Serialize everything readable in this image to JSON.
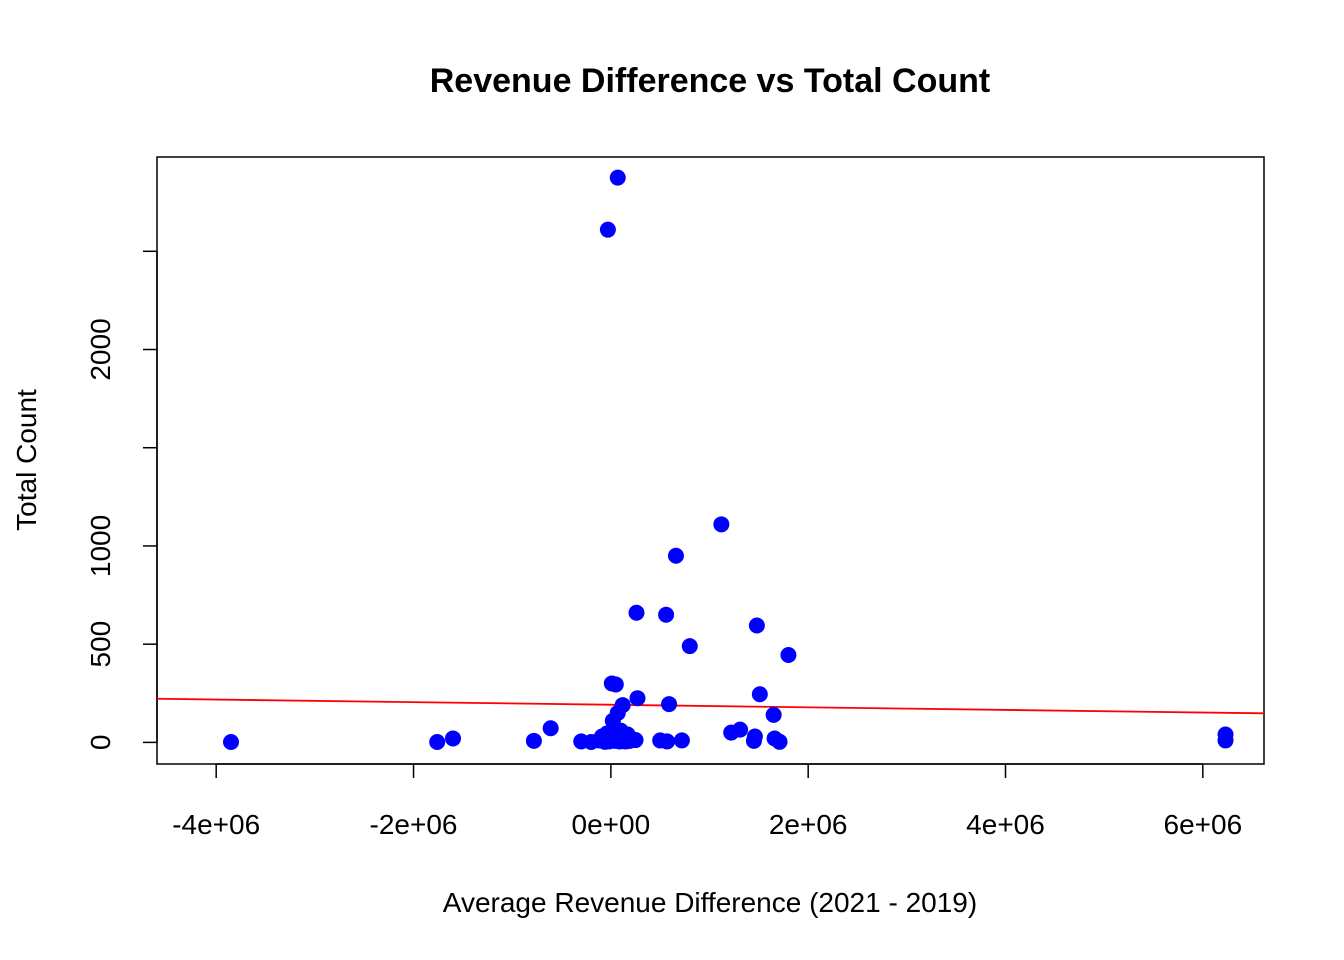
{
  "chart_data": {
    "type": "scatter",
    "title": "Revenue Difference vs Total Count",
    "xlabel": "Average Revenue Difference (2021 - 2019)",
    "ylabel": "Total Count",
    "xlim": [
      -4600000,
      6620000
    ],
    "ylim": [
      -110,
      2980
    ],
    "x_ticks": [
      -4000000,
      -2000000,
      0,
      2000000,
      4000000,
      6000000
    ],
    "x_tick_labels": [
      "-4e+06",
      "-2e+06",
      "0e+00",
      "2e+06",
      "4e+06",
      "6e+06"
    ],
    "y_ticks": [
      0,
      500,
      1000,
      1500,
      2000,
      2500
    ],
    "y_tick_labels": [
      "0",
      "500",
      "1000",
      "",
      "2000",
      ""
    ],
    "grid": false,
    "point_color": "#0000ff",
    "line_color": "#ff0000",
    "regression_line": {
      "x": [
        -4600000,
        6620000
      ],
      "y": [
        222,
        148
      ]
    },
    "points": [
      {
        "x": -3850000,
        "y": 2
      },
      {
        "x": -1760000,
        "y": 2
      },
      {
        "x": -1600000,
        "y": 20
      },
      {
        "x": -780000,
        "y": 8
      },
      {
        "x": -610000,
        "y": 72
      },
      {
        "x": -300000,
        "y": 5
      },
      {
        "x": -200000,
        "y": 2
      },
      {
        "x": -120000,
        "y": 10
      },
      {
        "x": -90000,
        "y": 30
      },
      {
        "x": -60000,
        "y": 3
      },
      {
        "x": -40000,
        "y": 45
      },
      {
        "x": -30000,
        "y": 2610
      },
      {
        "x": -20000,
        "y": 5
      },
      {
        "x": 0,
        "y": 15
      },
      {
        "x": 10000,
        "y": 300
      },
      {
        "x": 20000,
        "y": 110
      },
      {
        "x": 30000,
        "y": 70
      },
      {
        "x": 40000,
        "y": 8
      },
      {
        "x": 50000,
        "y": 295
      },
      {
        "x": 60000,
        "y": 30
      },
      {
        "x": 70000,
        "y": 150
      },
      {
        "x": 70000,
        "y": 2875
      },
      {
        "x": 90000,
        "y": 5
      },
      {
        "x": 100000,
        "y": 60
      },
      {
        "x": 120000,
        "y": 190
      },
      {
        "x": 130000,
        "y": 20
      },
      {
        "x": 150000,
        "y": 5
      },
      {
        "x": 170000,
        "y": 40
      },
      {
        "x": 190000,
        "y": 8
      },
      {
        "x": 250000,
        "y": 12
      },
      {
        "x": 260000,
        "y": 660
      },
      {
        "x": 270000,
        "y": 225
      },
      {
        "x": 500000,
        "y": 10
      },
      {
        "x": 560000,
        "y": 650
      },
      {
        "x": 570000,
        "y": 5
      },
      {
        "x": 590000,
        "y": 195
      },
      {
        "x": 660000,
        "y": 950
      },
      {
        "x": 720000,
        "y": 10
      },
      {
        "x": 800000,
        "y": 490
      },
      {
        "x": 1120000,
        "y": 1110
      },
      {
        "x": 1220000,
        "y": 50
      },
      {
        "x": 1310000,
        "y": 65
      },
      {
        "x": 1450000,
        "y": 8
      },
      {
        "x": 1460000,
        "y": 30
      },
      {
        "x": 1480000,
        "y": 595
      },
      {
        "x": 1510000,
        "y": 245
      },
      {
        "x": 1650000,
        "y": 140
      },
      {
        "x": 1660000,
        "y": 20
      },
      {
        "x": 1710000,
        "y": 3
      },
      {
        "x": 1800000,
        "y": 445
      },
      {
        "x": 6230000,
        "y": 10
      },
      {
        "x": 6230000,
        "y": 40
      }
    ]
  }
}
